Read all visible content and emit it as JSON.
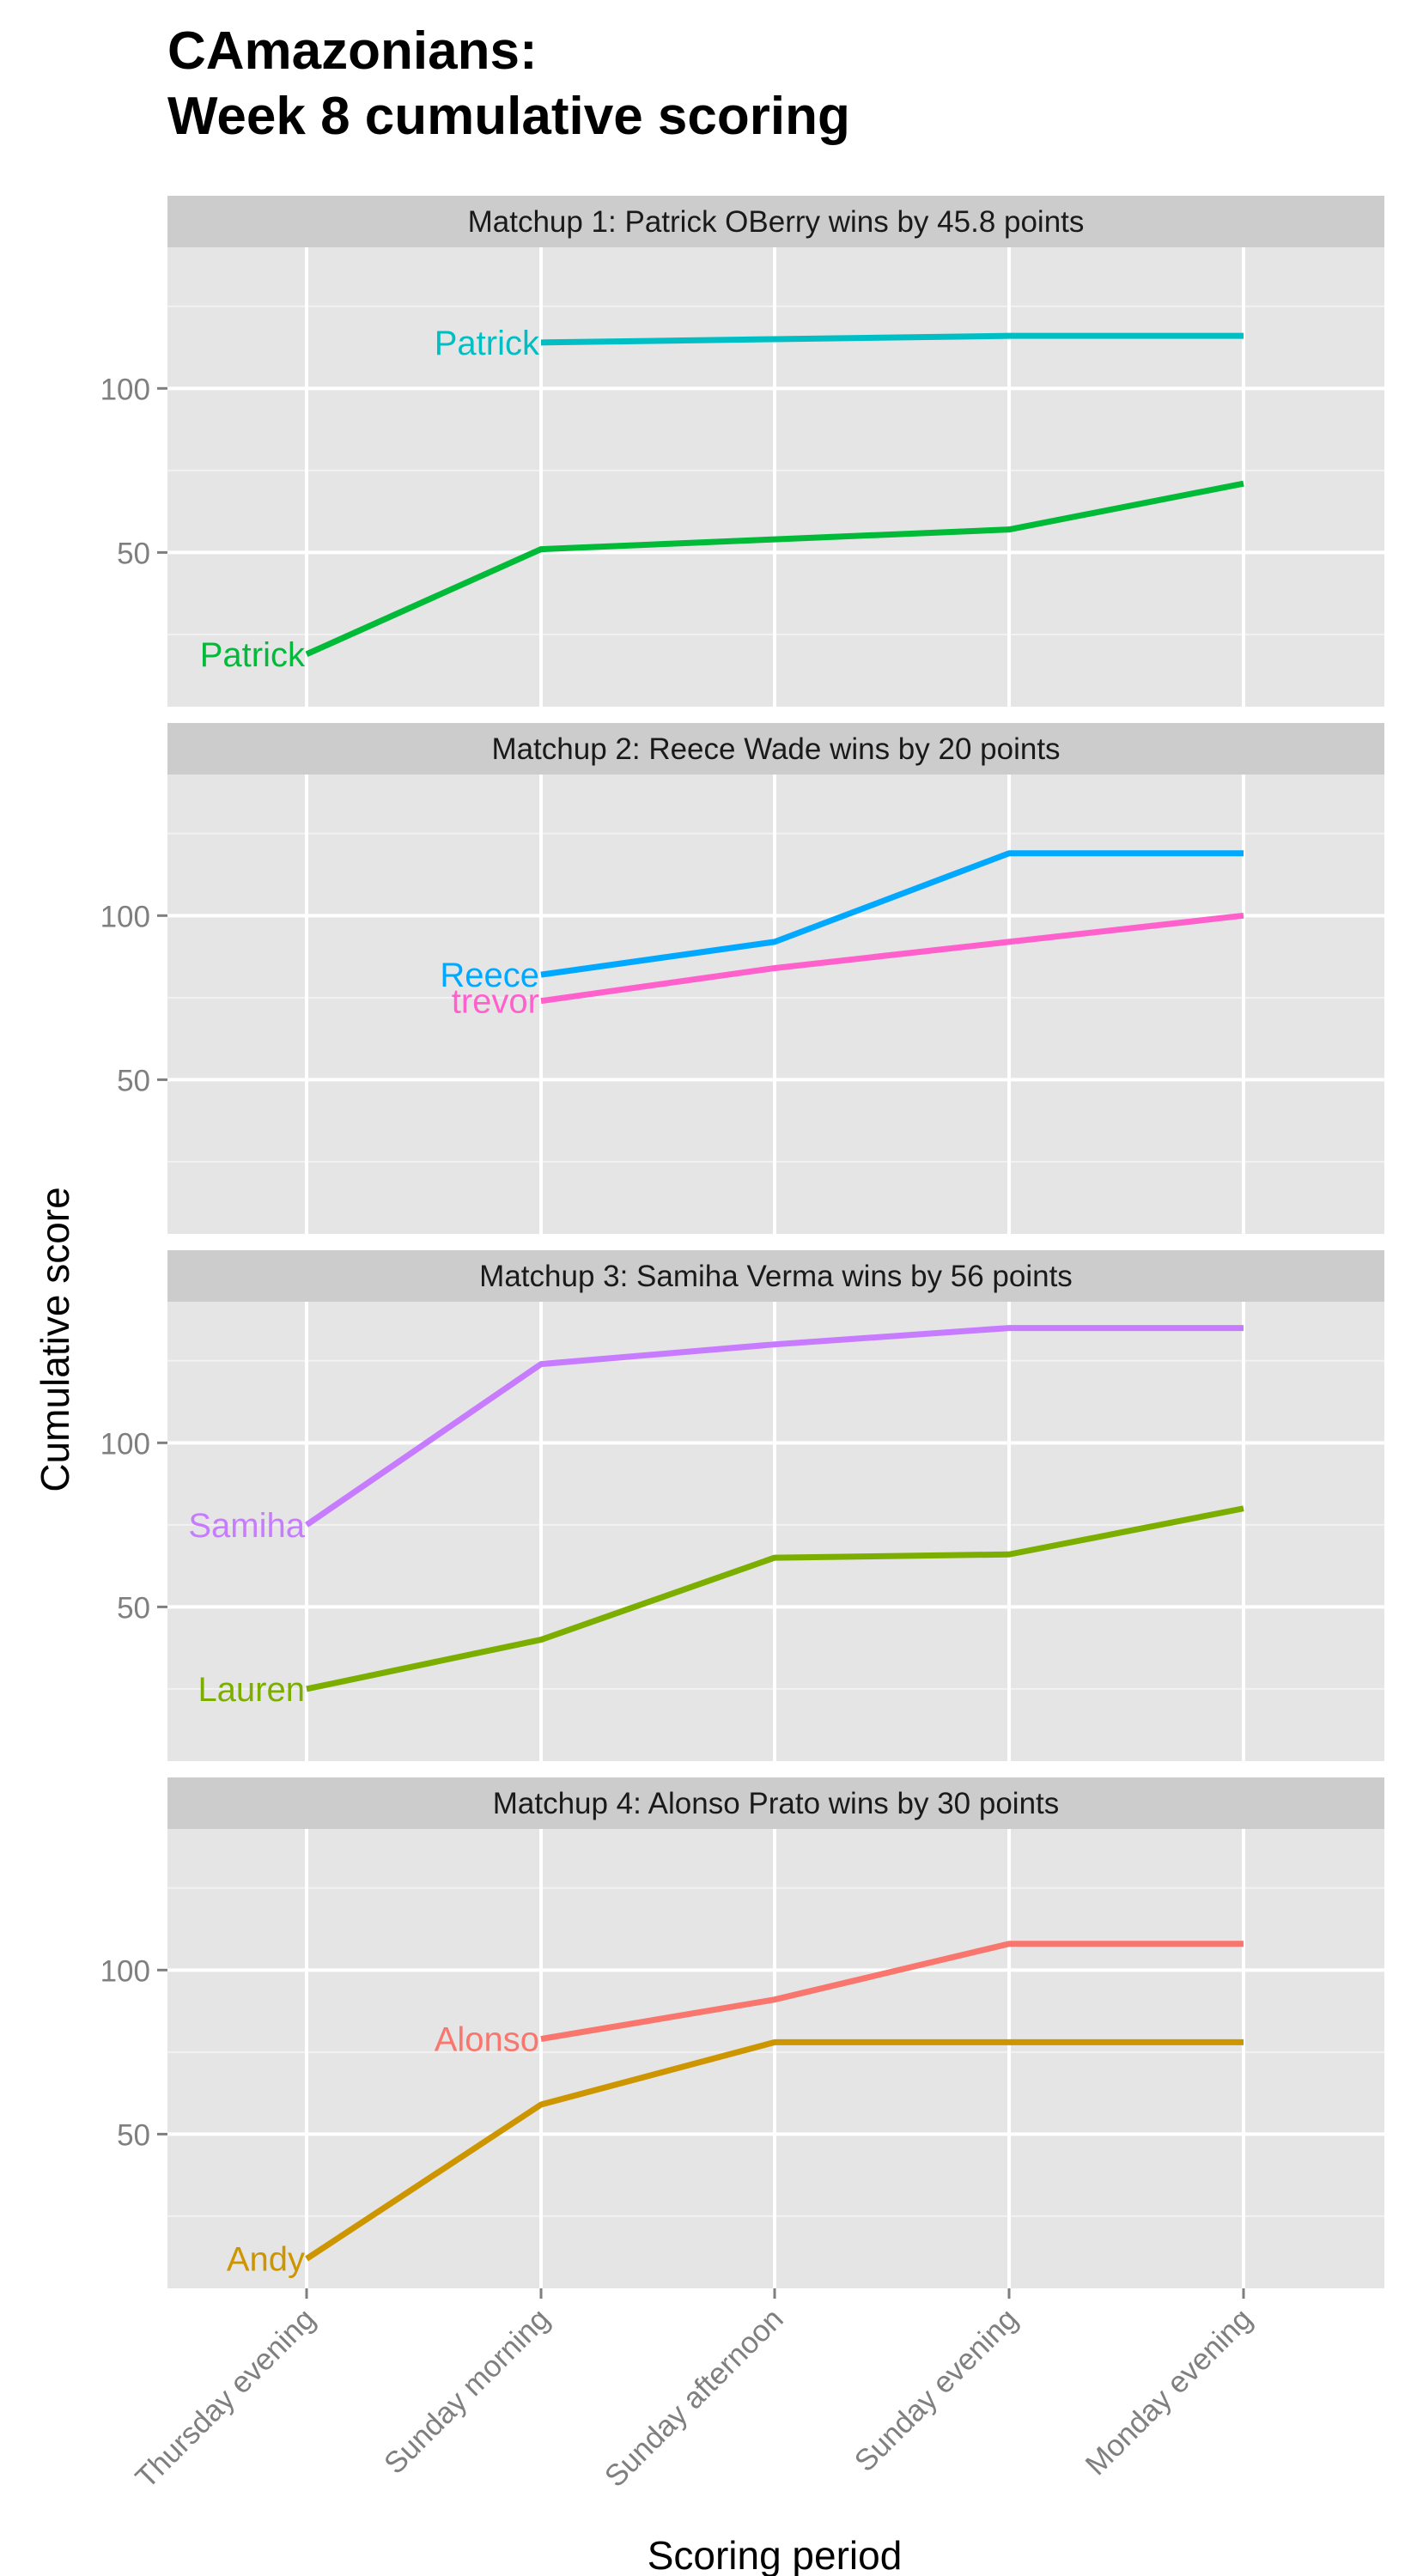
{
  "title_lines": [
    "CAmazonians:",
    "Week 8 cumulative scoring"
  ],
  "chart_data": {
    "type": "line",
    "xlabel": "Scoring period",
    "ylabel": "Cumulative score",
    "categories": [
      "Thursday evening",
      "Sunday morning",
      "Sunday afternoon",
      "Sunday evening",
      "Monday evening"
    ],
    "ylim": [
      3,
      143
    ],
    "yticks": [
      50,
      100
    ],
    "grid": true,
    "panels": [
      {
        "strip": "Matchup 1: Patrick OBerry wins by 45.8 points",
        "series": [
          {
            "name": "Patrick",
            "color": "#00bfc4",
            "values": [
              null,
              114,
              115,
              116,
              116
            ]
          },
          {
            "name": "Patrick",
            "color": "#00ba38",
            "values": [
              19,
              51,
              54,
              57,
              71
            ]
          }
        ]
      },
      {
        "strip": "Matchup 2: Reece Wade wins by 20 points",
        "series": [
          {
            "name": "Reece",
            "color": "#00a9ff",
            "values": [
              null,
              82,
              92,
              119,
              119
            ]
          },
          {
            "name": "trevor",
            "color": "#ff61cc",
            "values": [
              null,
              74,
              84,
              92,
              100
            ]
          }
        ]
      },
      {
        "strip": "Matchup 3: Samiha Verma wins by 56 points",
        "series": [
          {
            "name": "Samiha",
            "color": "#c77cff",
            "values": [
              75,
              124,
              130,
              135,
              135
            ]
          },
          {
            "name": "Lauren",
            "color": "#7cae00",
            "values": [
              25,
              40,
              65,
              66,
              80
            ]
          }
        ]
      },
      {
        "strip": "Matchup 4: Alonso Prato wins by 30 points",
        "series": [
          {
            "name": "Alonso",
            "color": "#f8766d",
            "values": [
              null,
              79,
              91,
              108,
              108
            ]
          },
          {
            "name": "Andy",
            "color": "#cd9600",
            "values": [
              12,
              59,
              78,
              78,
              78
            ]
          }
        ]
      }
    ]
  }
}
